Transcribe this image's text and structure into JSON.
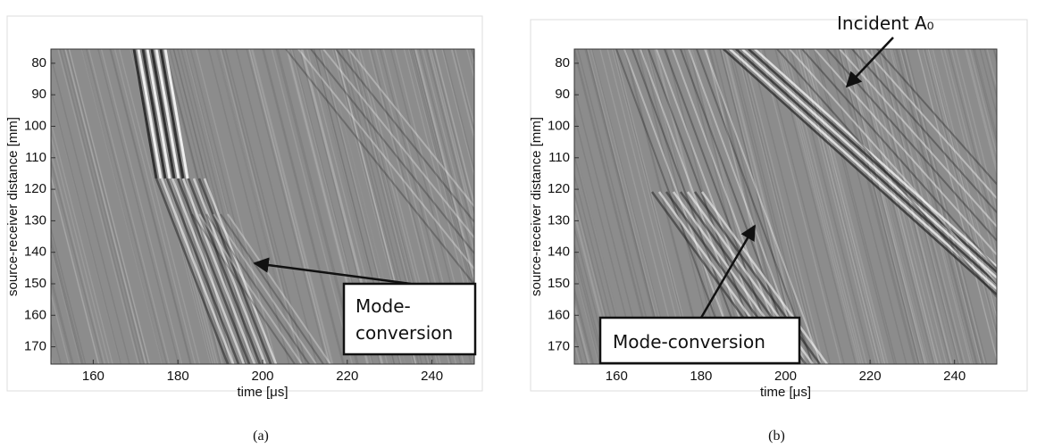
{
  "chart_data": [
    {
      "type": "image",
      "xlabel": "time [μs]",
      "ylabel": "source-receiver distance [mm]",
      "xlim": [
        150,
        250
      ],
      "xticks": [
        160,
        180,
        200,
        220,
        240
      ],
      "ylim": [
        175.5,
        75.5
      ],
      "yticks": [
        80,
        90,
        100,
        110,
        120,
        130,
        140,
        150,
        160,
        170
      ],
      "annotation": {
        "lines": [
          "Mode-",
          "conversion"
        ]
      },
      "caption": "(a)"
    },
    {
      "type": "image",
      "xlabel": "time [μs]",
      "ylabel": "source-receiver distance [mm]",
      "xlim": [
        150,
        250
      ],
      "xticks": [
        160,
        180,
        200,
        220,
        240
      ],
      "ylim": [
        175.5,
        75.5
      ],
      "yticks": [
        80,
        90,
        100,
        110,
        120,
        130,
        140,
        150,
        160,
        170
      ],
      "annotation": {
        "lines": [
          "Mode-conversion"
        ]
      },
      "annotation2": "Incident A₀",
      "caption": "(b)"
    }
  ]
}
